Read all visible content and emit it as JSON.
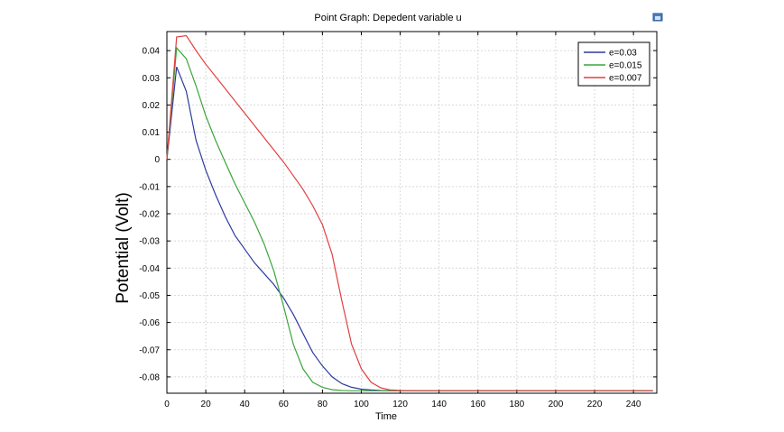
{
  "chart_data": {
    "type": "line",
    "title": "Point Graph: Depedent variable u",
    "xlabel": "Time",
    "ylabel": "Potential (Volt)",
    "xlim": [
      0,
      252
    ],
    "ylim": [
      -0.086,
      0.047
    ],
    "xticks": [
      0,
      20,
      40,
      60,
      80,
      100,
      120,
      140,
      160,
      180,
      200,
      220,
      240
    ],
    "yticks": [
      0.04,
      0.03,
      0.02,
      0.01,
      0,
      -0.01,
      -0.02,
      -0.03,
      -0.04,
      -0.05,
      -0.06,
      -0.07,
      -0.08
    ],
    "ytick_labels": [
      "0.04",
      "0.03",
      "0.02",
      "0.01",
      "0",
      "-0.01",
      "-0.02",
      "-0.03",
      "-0.04",
      "-0.05",
      "-0.06",
      "-0.07",
      "-0.08"
    ],
    "grid": true,
    "legend_position": "top-right",
    "series": [
      {
        "name": "e=0.03",
        "color": "#2e3a9e",
        "x": [
          0,
          5,
          10,
          15,
          20,
          25,
          30,
          35,
          40,
          45,
          50,
          55,
          60,
          65,
          70,
          75,
          80,
          85,
          90,
          95,
          100,
          105,
          110,
          115,
          120,
          130,
          140,
          160,
          200,
          250
        ],
        "y": [
          0,
          0.034,
          0.025,
          0.007,
          -0.004,
          -0.013,
          -0.021,
          -0.028,
          -0.033,
          -0.038,
          -0.042,
          -0.046,
          -0.051,
          -0.057,
          -0.064,
          -0.071,
          -0.076,
          -0.08,
          -0.0825,
          -0.0838,
          -0.0845,
          -0.0848,
          -0.085,
          -0.0851,
          -0.0851,
          -0.0851,
          -0.0851,
          -0.0851,
          -0.0851,
          -0.0851
        ]
      },
      {
        "name": "e=0.015",
        "color": "#3aa63a",
        "x": [
          0,
          5,
          10,
          15,
          20,
          25,
          30,
          35,
          40,
          45,
          50,
          55,
          60,
          65,
          70,
          75,
          80,
          85,
          90,
          95,
          100,
          110,
          120,
          140,
          200,
          250
        ],
        "y": [
          0,
          0.041,
          0.037,
          0.027,
          0.016,
          0.007,
          -0.001,
          -0.009,
          -0.016,
          -0.023,
          -0.031,
          -0.041,
          -0.054,
          -0.068,
          -0.077,
          -0.082,
          -0.0838,
          -0.0847,
          -0.085,
          -0.0851,
          -0.0851,
          -0.0851,
          -0.0851,
          -0.0851,
          -0.0851,
          -0.0851
        ]
      },
      {
        "name": "e=0.007",
        "color": "#e04040",
        "x": [
          0,
          5,
          10,
          15,
          20,
          30,
          40,
          50,
          60,
          65,
          70,
          75,
          80,
          85,
          90,
          95,
          100,
          105,
          110,
          115,
          120,
          130,
          140,
          200,
          250
        ],
        "y": [
          0,
          0.045,
          0.0455,
          0.04,
          0.035,
          0.026,
          0.017,
          0.008,
          -0.001,
          -0.006,
          -0.011,
          -0.017,
          -0.024,
          -0.035,
          -0.052,
          -0.068,
          -0.077,
          -0.082,
          -0.084,
          -0.0848,
          -0.085,
          -0.0851,
          -0.0851,
          -0.0851,
          -0.0851
        ]
      }
    ]
  }
}
